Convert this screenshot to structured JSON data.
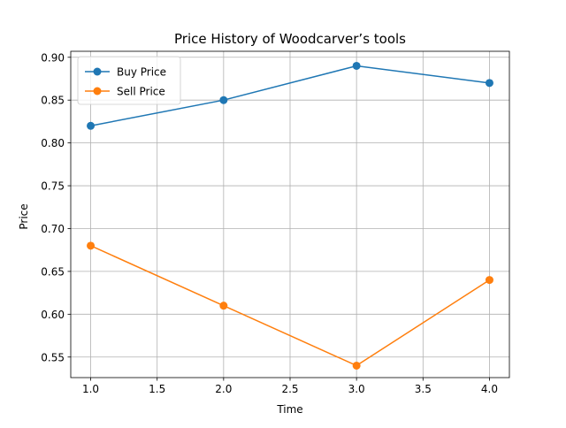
{
  "chart_data": {
    "type": "line",
    "title": "Price History of Woodcarver’s tools",
    "xlabel": "Time",
    "ylabel": "Price",
    "x": [
      1,
      2,
      3,
      4
    ],
    "xlim": [
      0.85,
      4.15
    ],
    "ylim": [
      0.526,
      0.907
    ],
    "xticks": [
      "1.0",
      "1.5",
      "2.0",
      "2.5",
      "3.0",
      "3.5",
      "4.0"
    ],
    "yticks": [
      "0.55",
      "0.60",
      "0.65",
      "0.70",
      "0.75",
      "0.80",
      "0.85",
      "0.90"
    ],
    "grid": true,
    "legend_position": "top-left",
    "series": [
      {
        "name": "Buy Price",
        "color": "#1f77b4",
        "values": [
          0.82,
          0.85,
          0.89,
          0.87
        ]
      },
      {
        "name": "Sell Price",
        "color": "#ff7f0e",
        "values": [
          0.68,
          0.61,
          0.54,
          0.64
        ]
      }
    ]
  }
}
